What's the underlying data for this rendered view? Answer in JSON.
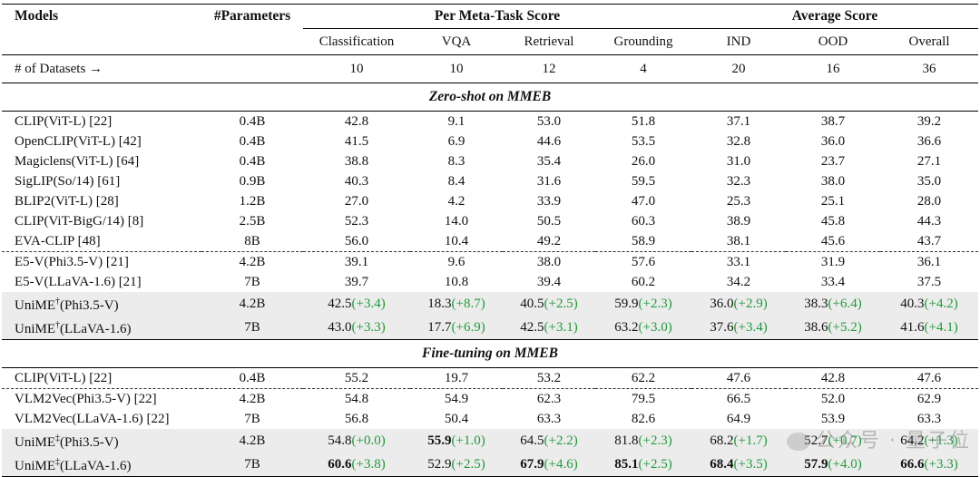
{
  "header": {
    "models": "Models",
    "params": "#Parameters",
    "group_meta": "Per Meta-Task Score",
    "group_avg": "Average Score",
    "cols": [
      "Classification",
      "VQA",
      "Retrieval",
      "Grounding",
      "IND",
      "OOD",
      "Overall"
    ]
  },
  "num_datasets": {
    "label": "# of Datasets →",
    "values": [
      "10",
      "10",
      "12",
      "4",
      "20",
      "16",
      "36"
    ]
  },
  "sections": {
    "zero_shot": "Zero-shot on MMEB",
    "fine_tune": "Fine-tuning on MMEB"
  },
  "zero_shot_rows": [
    {
      "model": "CLIP(ViT-L) [22]",
      "params": "0.4B",
      "cells": [
        [
          "42.8",
          ""
        ],
        [
          "9.1",
          ""
        ],
        [
          "53.0",
          ""
        ],
        [
          "51.8",
          ""
        ],
        [
          "37.1",
          ""
        ],
        [
          "38.7",
          ""
        ],
        [
          "39.2",
          ""
        ]
      ]
    },
    {
      "model": "OpenCLIP(ViT-L) [42]",
      "params": "0.4B",
      "cells": [
        [
          "41.5",
          ""
        ],
        [
          "6.9",
          ""
        ],
        [
          "44.6",
          ""
        ],
        [
          "53.5",
          ""
        ],
        [
          "32.8",
          ""
        ],
        [
          "36.0",
          ""
        ],
        [
          "36.6",
          ""
        ]
      ]
    },
    {
      "model": "Magiclens(ViT-L) [64]",
      "params": "0.4B",
      "cells": [
        [
          "38.8",
          ""
        ],
        [
          "8.3",
          ""
        ],
        [
          "35.4",
          ""
        ],
        [
          "26.0",
          ""
        ],
        [
          "31.0",
          ""
        ],
        [
          "23.7",
          ""
        ],
        [
          "27.1",
          ""
        ]
      ]
    },
    {
      "model": "SigLIP(So/14) [61]",
      "params": "0.9B",
      "cells": [
        [
          "40.3",
          ""
        ],
        [
          "8.4",
          ""
        ],
        [
          "31.6",
          ""
        ],
        [
          "59.5",
          ""
        ],
        [
          "32.3",
          ""
        ],
        [
          "38.0",
          ""
        ],
        [
          "35.0",
          ""
        ]
      ]
    },
    {
      "model": "BLIP2(ViT-L) [28]",
      "params": "1.2B",
      "cells": [
        [
          "27.0",
          ""
        ],
        [
          "4.2",
          ""
        ],
        [
          "33.9",
          ""
        ],
        [
          "47.0",
          ""
        ],
        [
          "25.3",
          ""
        ],
        [
          "25.1",
          ""
        ],
        [
          "28.0",
          ""
        ]
      ]
    },
    {
      "model": "CLIP(ViT-BigG/14) [8]",
      "params": "2.5B",
      "cells": [
        [
          "52.3",
          ""
        ],
        [
          "14.0",
          ""
        ],
        [
          "50.5",
          ""
        ],
        [
          "60.3",
          ""
        ],
        [
          "38.9",
          ""
        ],
        [
          "45.8",
          ""
        ],
        [
          "44.3",
          ""
        ]
      ]
    },
    {
      "model": "EVA-CLIP [48]",
      "params": "8B",
      "cells": [
        [
          "56.0",
          ""
        ],
        [
          "10.4",
          ""
        ],
        [
          "49.2",
          ""
        ],
        [
          "58.9",
          ""
        ],
        [
          "38.1",
          ""
        ],
        [
          "45.6",
          ""
        ],
        [
          "43.7",
          ""
        ]
      ]
    },
    {
      "model": "E5-V(Phi3.5-V) [21]",
      "params": "4.2B",
      "cells": [
        [
          "39.1",
          ""
        ],
        [
          "9.6",
          ""
        ],
        [
          "38.0",
          ""
        ],
        [
          "57.6",
          ""
        ],
        [
          "33.1",
          ""
        ],
        [
          "31.9",
          ""
        ],
        [
          "36.1",
          ""
        ]
      ]
    },
    {
      "model": "E5-V(LLaVA-1.6) [21]",
      "params": "7B",
      "cells": [
        [
          "39.7",
          ""
        ],
        [
          "10.8",
          ""
        ],
        [
          "39.4",
          ""
        ],
        [
          "60.2",
          ""
        ],
        [
          "34.2",
          ""
        ],
        [
          "33.4",
          ""
        ],
        [
          "37.5",
          ""
        ]
      ]
    },
    {
      "model": "UniME",
      "sup": "†",
      "suffix": "(Phi3.5-V)",
      "params": "4.2B",
      "cells": [
        [
          "42.5",
          "(+3.4)"
        ],
        [
          "18.3",
          "(+8.7)"
        ],
        [
          "40.5",
          "(+2.5)"
        ],
        [
          "59.9",
          "(+2.3)"
        ],
        [
          "36.0",
          "(+2.9)"
        ],
        [
          "38.3",
          "(+6.4)"
        ],
        [
          "40.3",
          "(+4.2)"
        ]
      ]
    },
    {
      "model": "UniME",
      "sup": "†",
      "suffix": "(LLaVA-1.6)",
      "params": "7B",
      "cells": [
        [
          "43.0",
          "(+3.3)"
        ],
        [
          "17.7",
          "(+6.9)"
        ],
        [
          "42.5",
          "(+3.1)"
        ],
        [
          "63.2",
          "(+3.0)"
        ],
        [
          "37.6",
          "(+3.4)"
        ],
        [
          "38.6",
          "(+5.2)"
        ],
        [
          "41.6",
          "(+4.1)"
        ]
      ]
    }
  ],
  "fine_tune_rows": [
    {
      "model": "CLIP(ViT-L) [22]",
      "params": "0.4B",
      "cells": [
        [
          "55.2",
          ""
        ],
        [
          "19.7",
          ""
        ],
        [
          "53.2",
          ""
        ],
        [
          "62.2",
          ""
        ],
        [
          "47.6",
          ""
        ],
        [
          "42.8",
          ""
        ],
        [
          "47.6",
          ""
        ]
      ]
    },
    {
      "model": "VLM2Vec(Phi3.5-V) [22]",
      "params": "4.2B",
      "cells": [
        [
          "54.8",
          ""
        ],
        [
          "54.9",
          ""
        ],
        [
          "62.3",
          ""
        ],
        [
          "79.5",
          ""
        ],
        [
          "66.5",
          ""
        ],
        [
          "52.0",
          ""
        ],
        [
          "62.9",
          ""
        ]
      ]
    },
    {
      "model": "VLM2Vec(LLaVA-1.6) [22]",
      "params": "7B",
      "cells": [
        [
          "56.8",
          ""
        ],
        [
          "50.4",
          ""
        ],
        [
          "63.3",
          ""
        ],
        [
          "82.6",
          ""
        ],
        [
          "64.9",
          ""
        ],
        [
          "53.9",
          ""
        ],
        [
          "63.3",
          ""
        ]
      ]
    },
    {
      "model": "UniME",
      "sup": "‡",
      "suffix": "(Phi3.5-V)",
      "params": "4.2B",
      "cells": [
        [
          "54.8",
          "(+0.0)"
        ],
        [
          "55.9",
          "(+1.0)"
        ],
        [
          "64.5",
          "(+2.2)"
        ],
        [
          "81.8",
          "(+2.3)"
        ],
        [
          "68.2",
          "(+1.7)"
        ],
        [
          "52.7",
          "(+0.7)"
        ],
        [
          "64.2",
          "(+1.3)"
        ]
      ],
      "bold": [
        1
      ]
    },
    {
      "model": "UniME",
      "sup": "‡",
      "suffix": "(LLaVA-1.6)",
      "params": "7B",
      "cells": [
        [
          "60.6",
          "(+3.8)"
        ],
        [
          "52.9",
          "(+2.5)"
        ],
        [
          "67.9",
          "(+4.6)"
        ],
        [
          "85.1",
          "(+2.5)"
        ],
        [
          "68.4",
          "(+3.5)"
        ],
        [
          "57.9",
          "(+4.0)"
        ],
        [
          "66.6",
          "(+3.3)"
        ]
      ],
      "bold": [
        0,
        2,
        3,
        4,
        5,
        6
      ]
    }
  ],
  "watermark": "公众号 · 量子位",
  "colors": {
    "gain": "#1e9d3a",
    "shade": "#ececec"
  }
}
